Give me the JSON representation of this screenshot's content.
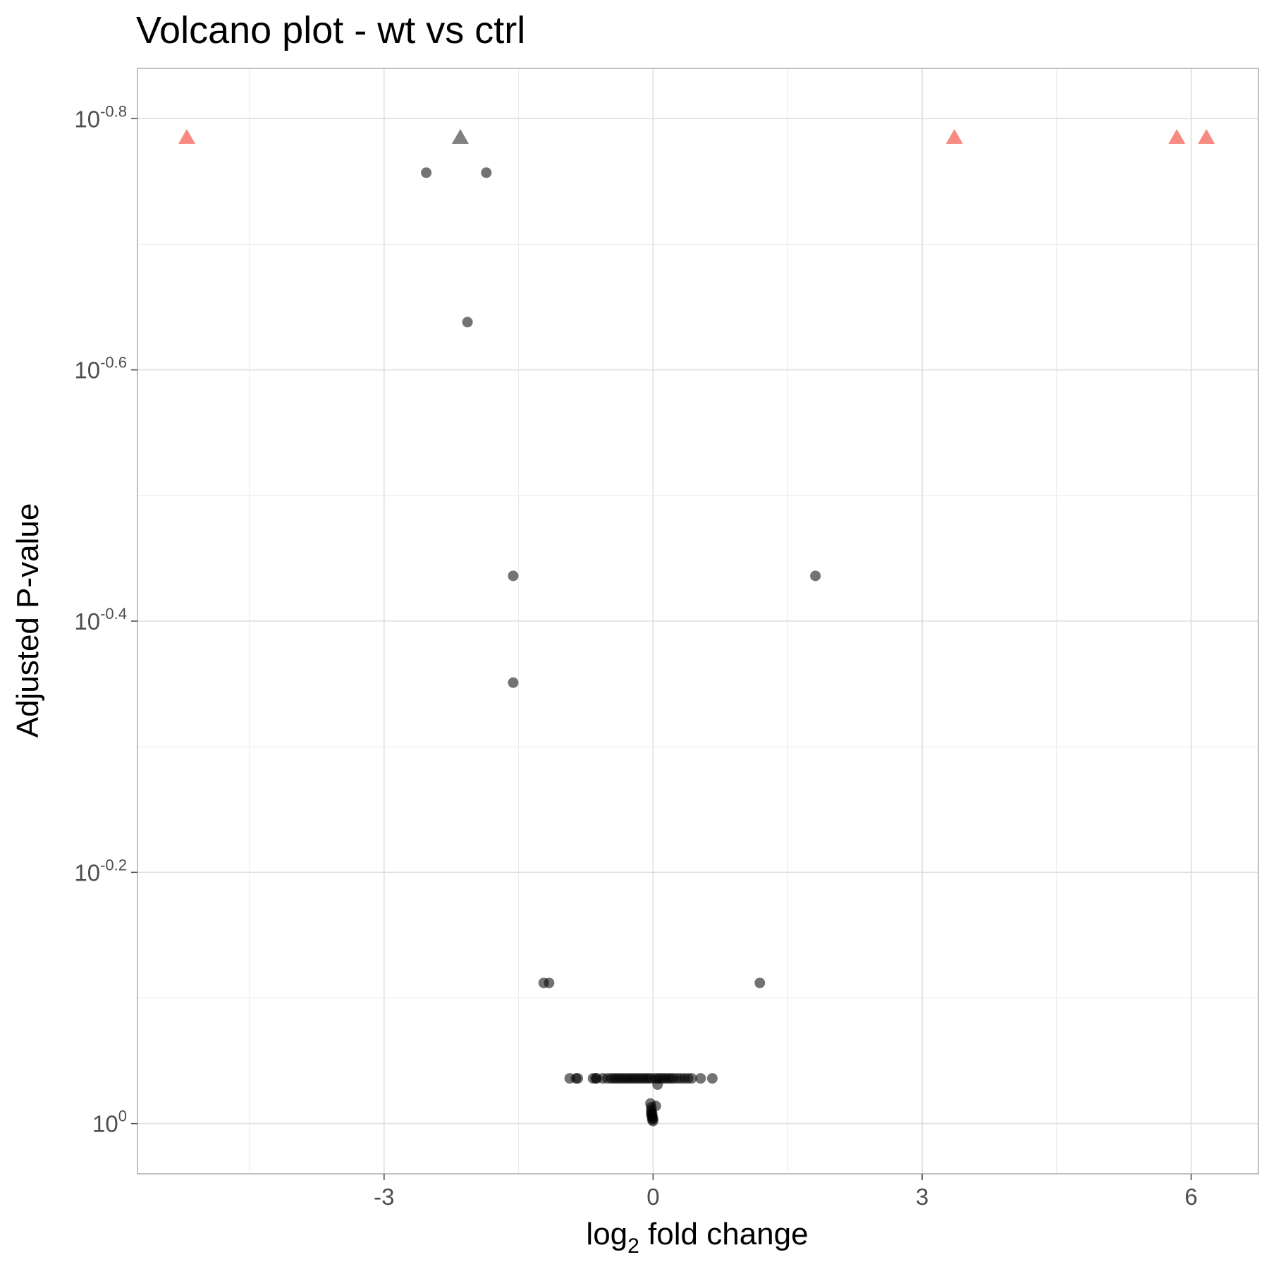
{
  "chart_data": {
    "type": "scatter",
    "title": "Volcano plot - wt vs ctrl",
    "xlabel": {
      "prefix": "log",
      "subscript": "2",
      "suffix": " fold change"
    },
    "ylabel": "Adjusted P-value",
    "xlim": [
      -5.75,
      6.75
    ],
    "ylim_log10": [
      0.04,
      -0.84
    ],
    "y_scale": "reversed-log10",
    "grid": true,
    "x_ticks": [
      {
        "value": -3,
        "label": "-3"
      },
      {
        "value": 0,
        "label": "0"
      },
      {
        "value": 3,
        "label": "3"
      },
      {
        "value": 6,
        "label": "6"
      }
    ],
    "x_minor_ticks": [
      -4.5,
      -1.5,
      1.5,
      4.5
    ],
    "y_ticks": [
      {
        "log10": -0.8,
        "base": "10",
        "exponent": "-0.8"
      },
      {
        "log10": -0.6,
        "base": "10",
        "exponent": "-0.6"
      },
      {
        "log10": -0.4,
        "base": "10",
        "exponent": "-0.4"
      },
      {
        "log10": -0.2,
        "base": "10",
        "exponent": "-0.2"
      },
      {
        "log10": 0.0,
        "base": "10",
        "exponent": "0"
      }
    ],
    "y_minor_ticks_log10": [
      -0.7,
      -0.5,
      -0.3,
      -0.1
    ],
    "colors": {
      "significant": "#f8766d",
      "not_significant": "#555555"
    },
    "points": [
      {
        "x": -5.2,
        "log10p": -0.785,
        "shape": "triangle",
        "color": "significant"
      },
      {
        "x": -2.15,
        "log10p": -0.785,
        "shape": "triangle",
        "color": "not_significant"
      },
      {
        "x": 3.36,
        "log10p": -0.785,
        "shape": "triangle",
        "color": "significant"
      },
      {
        "x": 5.84,
        "log10p": -0.785,
        "shape": "triangle",
        "color": "significant"
      },
      {
        "x": 6.17,
        "log10p": -0.785,
        "shape": "triangle",
        "color": "significant"
      },
      {
        "x": -2.53,
        "log10p": -0.757
      },
      {
        "x": -1.86,
        "log10p": -0.757
      },
      {
        "x": -2.07,
        "log10p": -0.638
      },
      {
        "x": -1.56,
        "log10p": -0.436
      },
      {
        "x": 1.81,
        "log10p": -0.436
      },
      {
        "x": -1.56,
        "log10p": -0.351
      },
      {
        "x": -1.22,
        "log10p": -0.112
      },
      {
        "x": -1.16,
        "log10p": -0.112
      },
      {
        "x": 1.19,
        "log10p": -0.112
      },
      {
        "x": -0.93,
        "log10p": -0.036
      },
      {
        "x": -0.86,
        "log10p": -0.036
      },
      {
        "x": -0.84,
        "log10p": -0.036
      },
      {
        "x": -0.67,
        "log10p": -0.036
      },
      {
        "x": -0.64,
        "log10p": -0.036
      },
      {
        "x": -0.63,
        "log10p": -0.036
      },
      {
        "x": -0.56,
        "log10p": -0.036
      },
      {
        "x": -0.51,
        "log10p": -0.036
      },
      {
        "x": -0.47,
        "log10p": -0.036
      },
      {
        "x": -0.44,
        "log10p": -0.036
      },
      {
        "x": -0.41,
        "log10p": -0.036
      },
      {
        "x": -0.38,
        "log10p": -0.036
      },
      {
        "x": -0.35,
        "log10p": -0.036
      },
      {
        "x": -0.32,
        "log10p": -0.036
      },
      {
        "x": -0.29,
        "log10p": -0.036
      },
      {
        "x": -0.26,
        "log10p": -0.036
      },
      {
        "x": -0.23,
        "log10p": -0.036
      },
      {
        "x": -0.2,
        "log10p": -0.036
      },
      {
        "x": -0.17,
        "log10p": -0.036
      },
      {
        "x": -0.14,
        "log10p": -0.036
      },
      {
        "x": -0.11,
        "log10p": -0.036
      },
      {
        "x": -0.08,
        "log10p": -0.036
      },
      {
        "x": -0.05,
        "log10p": -0.036
      },
      {
        "x": -0.02,
        "log10p": -0.036
      },
      {
        "x": 0.02,
        "log10p": -0.036
      },
      {
        "x": 0.05,
        "log10p": -0.036
      },
      {
        "x": 0.08,
        "log10p": -0.036
      },
      {
        "x": 0.11,
        "log10p": -0.036
      },
      {
        "x": 0.14,
        "log10p": -0.036
      },
      {
        "x": 0.17,
        "log10p": -0.036
      },
      {
        "x": 0.2,
        "log10p": -0.036
      },
      {
        "x": 0.23,
        "log10p": -0.036
      },
      {
        "x": 0.27,
        "log10p": -0.036
      },
      {
        "x": 0.31,
        "log10p": -0.036
      },
      {
        "x": 0.35,
        "log10p": -0.036
      },
      {
        "x": 0.39,
        "log10p": -0.036
      },
      {
        "x": 0.43,
        "log10p": -0.036
      },
      {
        "x": 0.53,
        "log10p": -0.036
      },
      {
        "x": 0.66,
        "log10p": -0.036
      },
      {
        "x": 0.05,
        "log10p": -0.031
      },
      {
        "x": -0.03,
        "log10p": -0.016
      },
      {
        "x": 0.03,
        "log10p": -0.014
      },
      {
        "x": -0.02,
        "log10p": -0.013
      },
      {
        "x": -0.02,
        "log10p": -0.011
      },
      {
        "x": -0.02,
        "log10p": -0.009
      },
      {
        "x": -0.01,
        "log10p": -0.008
      },
      {
        "x": -0.02,
        "log10p": -0.007
      },
      {
        "x": -0.01,
        "log10p": -0.006
      },
      {
        "x": -0.01,
        "log10p": -0.005
      },
      {
        "x": 0.0,
        "log10p": -0.004
      },
      {
        "x": -0.01,
        "log10p": -0.003
      },
      {
        "x": 0.0,
        "log10p": -0.002
      }
    ]
  }
}
